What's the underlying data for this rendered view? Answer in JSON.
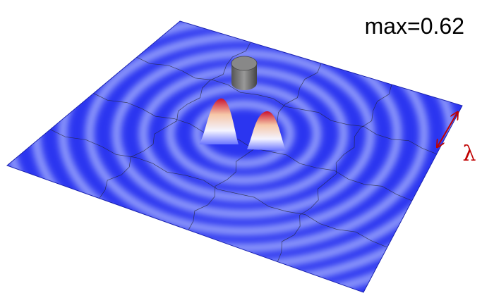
{
  "label": "max=0.62",
  "wavelength_symbol": "λ"
}
